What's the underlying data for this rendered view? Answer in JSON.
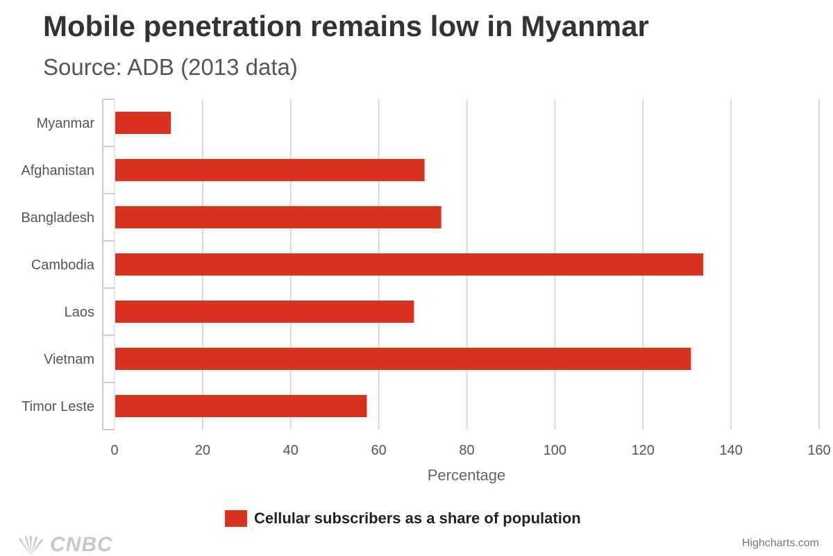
{
  "title": "Mobile penetration remains low in Myanmar",
  "subtitle": "Source: ADB (2013 data)",
  "credits": "Highcharts.com",
  "logo_text": "CNBC",
  "colors": {
    "bar": "#d9321f",
    "grid": "#d8d8d8",
    "axis": "#c0d0e0",
    "label": "#555555"
  },
  "chart_data": {
    "type": "bar",
    "orientation": "horizontal",
    "title": "Mobile penetration remains low in Myanmar",
    "subtitle": "Source: ADB (2013 data)",
    "categories": [
      "Myanmar",
      "Afghanistan",
      "Bangladesh",
      "Cambodia",
      "Laos",
      "Vietnam",
      "Timor Leste"
    ],
    "series": [
      {
        "name": "Cellular subscribers as a share of population",
        "values": [
          12.8,
          70.4,
          74.2,
          133.7,
          68.0,
          130.9,
          57.3
        ]
      }
    ],
    "xlabel": "Percentage",
    "ylabel": "",
    "xlim": [
      0,
      160
    ],
    "ticks": [
      0,
      20,
      40,
      60,
      80,
      100,
      120,
      140,
      160
    ],
    "grid": true,
    "legend": "bottom-center"
  }
}
